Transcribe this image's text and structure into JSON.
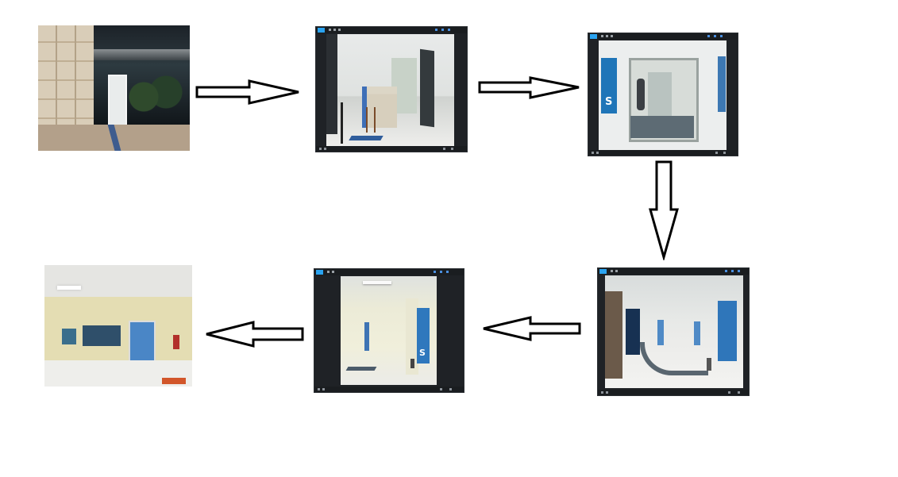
{
  "diagram": {
    "type": "flow",
    "nodes": [
      {
        "id": "photo-1",
        "subject": "building-entrance-night"
      },
      {
        "id": "photo-2",
        "subject": "reception-desk"
      },
      {
        "id": "photo-3",
        "subject": "turnstile-doorway"
      },
      {
        "id": "photo-4",
        "subject": "lobby-with-stairs"
      },
      {
        "id": "photo-5",
        "subject": "yellow-corridor"
      },
      {
        "id": "photo-6",
        "subject": "blue-door-hallway"
      }
    ],
    "edges": [
      {
        "from": "photo-1",
        "to": "photo-2",
        "direction": "right"
      },
      {
        "from": "photo-2",
        "to": "photo-3",
        "direction": "right"
      },
      {
        "from": "photo-3",
        "to": "photo-4",
        "direction": "down"
      },
      {
        "from": "photo-4",
        "to": "photo-5",
        "direction": "left"
      },
      {
        "from": "photo-5",
        "to": "photo-6",
        "direction": "left"
      }
    ]
  },
  "colors": {
    "background": "#ffffff",
    "arrow_stroke": "#000000",
    "arrow_fill": "#ffffff",
    "viewer_frame": "#1f2226",
    "viewer_logo": "#2aa3f0"
  }
}
